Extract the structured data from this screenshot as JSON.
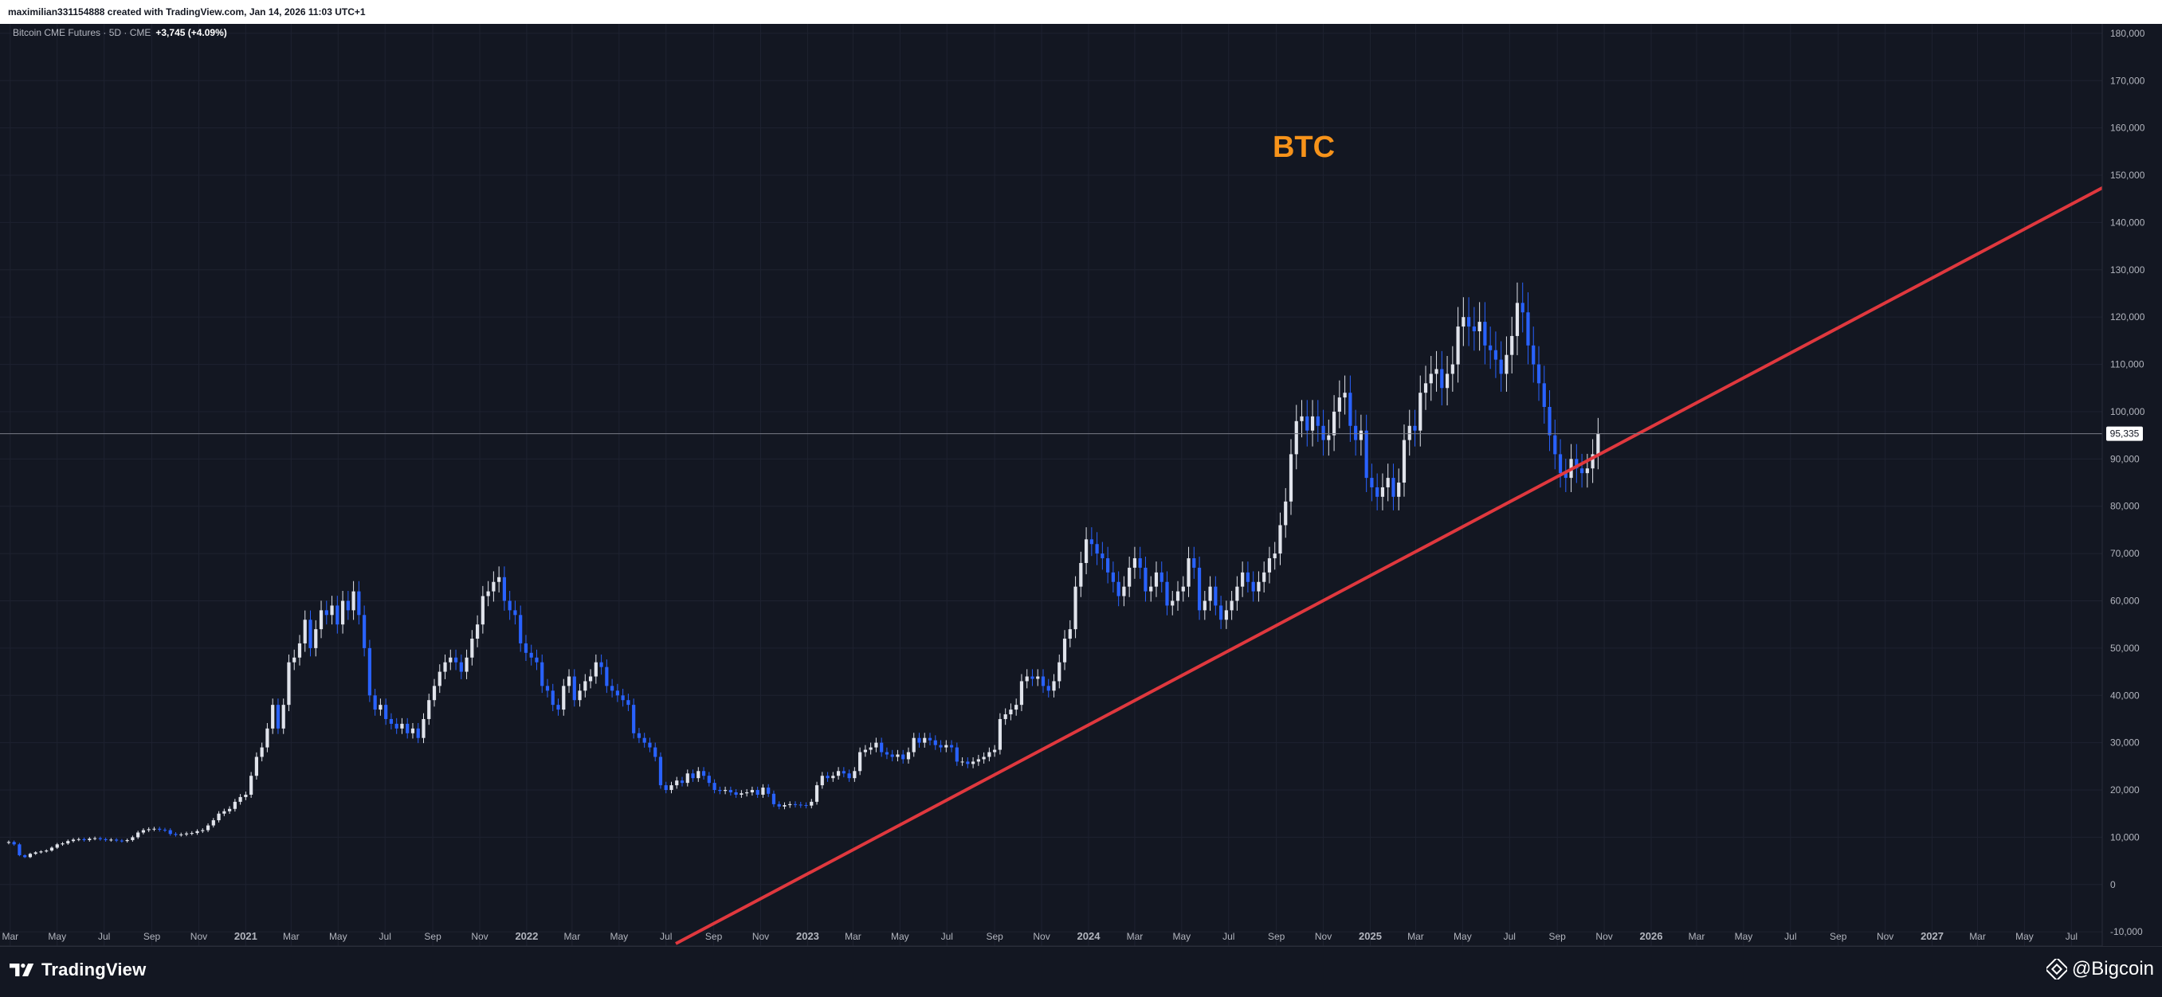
{
  "header": {
    "attribution": "maximilian331154888 created with TradingView.com, Jan 14, 2026 11:03 UTC+1"
  },
  "legend": {
    "symbol": "Bitcoin CME Futures · 5D · CME",
    "change": "+3,745 (+4.09%)"
  },
  "annotation": {
    "text": "BTC",
    "color": "#f7931a"
  },
  "footer": {
    "logo_text": "TradingView",
    "logo_icon": "tradingview-logo-icon",
    "watermark_text": "@Bigcoin",
    "watermark_icon": "binance-diamond-icon"
  },
  "colors": {
    "background": "#131722",
    "grid": "#1e2230",
    "up_candle": "#e0e3eb",
    "down_candle": "#2962ff",
    "trendline": "#e0383e",
    "price_line": "#787b86"
  },
  "chart_data": {
    "type": "candlestick",
    "title": "",
    "series_name": "Bitcoin CME Futures · 5D · CME",
    "ylim": [
      -13000,
      182000
    ],
    "y_ticks": [
      180000,
      170000,
      160000,
      150000,
      140000,
      130000,
      120000,
      110000,
      100000,
      90000,
      80000,
      70000,
      60000,
      50000,
      40000,
      30000,
      20000,
      10000,
      0,
      -10000
    ],
    "y_tick_labels": [
      "180,000",
      "170,000",
      "160,000",
      "150,000",
      "140,000",
      "130,000",
      "120,000",
      "110,000",
      "100,000",
      "90,000",
      "80,000",
      "70,000",
      "60,000",
      "50,000",
      "40,000",
      "30,000",
      "20,000",
      "10,000",
      "0",
      "-10,000"
    ],
    "xlim": [
      "2020-02-25",
      "2027-08-10"
    ],
    "x_ticks": [
      {
        "date": "2020-03-01",
        "label": "Mar"
      },
      {
        "date": "2020-05-01",
        "label": "May"
      },
      {
        "date": "2020-07-01",
        "label": "Jul"
      },
      {
        "date": "2020-09-01",
        "label": "Sep"
      },
      {
        "date": "2020-11-01",
        "label": "Nov"
      },
      {
        "date": "2021-01-01",
        "label": "2021"
      },
      {
        "date": "2021-03-01",
        "label": "Mar"
      },
      {
        "date": "2021-05-01",
        "label": "May"
      },
      {
        "date": "2021-07-01",
        "label": "Jul"
      },
      {
        "date": "2021-09-01",
        "label": "Sep"
      },
      {
        "date": "2021-11-01",
        "label": "Nov"
      },
      {
        "date": "2022-01-01",
        "label": "2022"
      },
      {
        "date": "2022-03-01",
        "label": "Mar"
      },
      {
        "date": "2022-05-01",
        "label": "May"
      },
      {
        "date": "2022-07-01",
        "label": "Jul"
      },
      {
        "date": "2022-09-01",
        "label": "Sep"
      },
      {
        "date": "2022-11-01",
        "label": "Nov"
      },
      {
        "date": "2023-01-01",
        "label": "2023"
      },
      {
        "date": "2023-03-01",
        "label": "Mar"
      },
      {
        "date": "2023-05-01",
        "label": "May"
      },
      {
        "date": "2023-07-01",
        "label": "Jul"
      },
      {
        "date": "2023-09-01",
        "label": "Sep"
      },
      {
        "date": "2023-11-01",
        "label": "Nov"
      },
      {
        "date": "2024-01-01",
        "label": "2024"
      },
      {
        "date": "2024-03-01",
        "label": "Mar"
      },
      {
        "date": "2024-05-01",
        "label": "May"
      },
      {
        "date": "2024-07-01",
        "label": "Jul"
      },
      {
        "date": "2024-09-01",
        "label": "Sep"
      },
      {
        "date": "2024-11-01",
        "label": "Nov"
      },
      {
        "date": "2025-01-01",
        "label": "2025"
      },
      {
        "date": "2025-03-01",
        "label": "Mar"
      },
      {
        "date": "2025-05-01",
        "label": "May"
      },
      {
        "date": "2025-07-01",
        "label": "Jul"
      },
      {
        "date": "2025-09-01",
        "label": "Sep"
      },
      {
        "date": "2025-11-01",
        "label": "Nov"
      },
      {
        "date": "2026-01-01",
        "label": "2026"
      },
      {
        "date": "2026-03-01",
        "label": "Mar"
      },
      {
        "date": "2026-05-01",
        "label": "May"
      },
      {
        "date": "2026-07-01",
        "label": "Jul"
      },
      {
        "date": "2026-09-01",
        "label": "Sep"
      },
      {
        "date": "2026-11-01",
        "label": "Nov"
      },
      {
        "date": "2027-01-01",
        "label": "2027"
      },
      {
        "date": "2027-03-01",
        "label": "Mar"
      },
      {
        "date": "2027-05-01",
        "label": "May"
      },
      {
        "date": "2027-07-01",
        "label": "Jul"
      }
    ],
    "current_price": 95335,
    "current_price_label": "95,335",
    "candle_start_date": "2020-02-28",
    "candle_period_days": 7,
    "closes": [
      9000,
      8500,
      6200,
      5800,
      6500,
      6800,
      7000,
      7200,
      7800,
      8500,
      8700,
      9200,
      9500,
      9600,
      9400,
      9700,
      9800,
      9600,
      9400,
      9500,
      9300,
      9200,
      9400,
      10000,
      11000,
      11500,
      11700,
      11800,
      11600,
      11500,
      10700,
      10500,
      10600,
      10800,
      10900,
      11300,
      11500,
      12500,
      13600,
      15000,
      15500,
      16000,
      17500,
      18500,
      19000,
      23000,
      27000,
      29000,
      33000,
      38000,
      33000,
      38000,
      47000,
      48000,
      51000,
      56000,
      50000,
      54000,
      58000,
      57000,
      59000,
      55000,
      60000,
      58000,
      62000,
      57000,
      50000,
      40000,
      37000,
      38000,
      35000,
      34000,
      33000,
      34000,
      32000,
      33000,
      31000,
      35000,
      39000,
      42000,
      45000,
      47000,
      48000,
      47000,
      45000,
      48000,
      52000,
      55000,
      61000,
      62000,
      64000,
      65000,
      60000,
      58000,
      57000,
      51000,
      49000,
      48000,
      47000,
      42000,
      41000,
      38000,
      37000,
      42000,
      44000,
      39000,
      41000,
      43000,
      44000,
      47000,
      46000,
      42000,
      41000,
      40000,
      39000,
      38000,
      32000,
      31000,
      30000,
      29000,
      27000,
      21000,
      20000,
      21000,
      22000,
      21500,
      23500,
      22500,
      24000,
      23000,
      21500,
      20000,
      19800,
      20000,
      19500,
      19000,
      19300,
      19500,
      20000,
      19000,
      20500,
      19200,
      17000,
      16500,
      16800,
      17000,
      16900,
      16800,
      16700,
      17500,
      21000,
      23000,
      22500,
      23000,
      24000,
      23500,
      22500,
      24000,
      28000,
      28500,
      29000,
      30000,
      28000,
      27500,
      27000,
      27500,
      26500,
      28000,
      31000,
      30000,
      31000,
      30500,
      29500,
      29000,
      29500,
      29000,
      26000,
      26000,
      25500,
      26000,
      26500,
      27000,
      28000,
      28500,
      35000,
      36000,
      37000,
      38000,
      43000,
      44000,
      43500,
      44000,
      42000,
      41000,
      43000,
      47000,
      52000,
      54000,
      63000,
      68000,
      73000,
      72000,
      70000,
      69000,
      66000,
      64000,
      61000,
      63000,
      67000,
      69000,
      67000,
      62000,
      63000,
      66000,
      64000,
      59000,
      60000,
      62000,
      63000,
      69000,
      67000,
      58000,
      60000,
      63000,
      59000,
      56000,
      58000,
      60000,
      63000,
      66000,
      64000,
      62000,
      64000,
      66000,
      69000,
      70000,
      76000,
      81000,
      91000,
      98000,
      99000,
      96000,
      99000,
      97000,
      94000,
      95000,
      100000,
      103000,
      104000,
      97000,
      94000,
      96000,
      86000,
      84000,
      82000,
      84000,
      86000,
      82000,
      85000,
      94000,
      97000,
      96000,
      104000,
      106000,
      108000,
      109000,
      105000,
      108000,
      110000,
      118000,
      120000,
      118000,
      117000,
      119000,
      114000,
      113000,
      111000,
      108000,
      112000,
      116000,
      123000,
      121000,
      114000,
      110000,
      106000,
      101000,
      95000,
      91000,
      87000,
      86000,
      90000,
      88000,
      87000,
      88000,
      91000,
      95335
    ]
  }
}
